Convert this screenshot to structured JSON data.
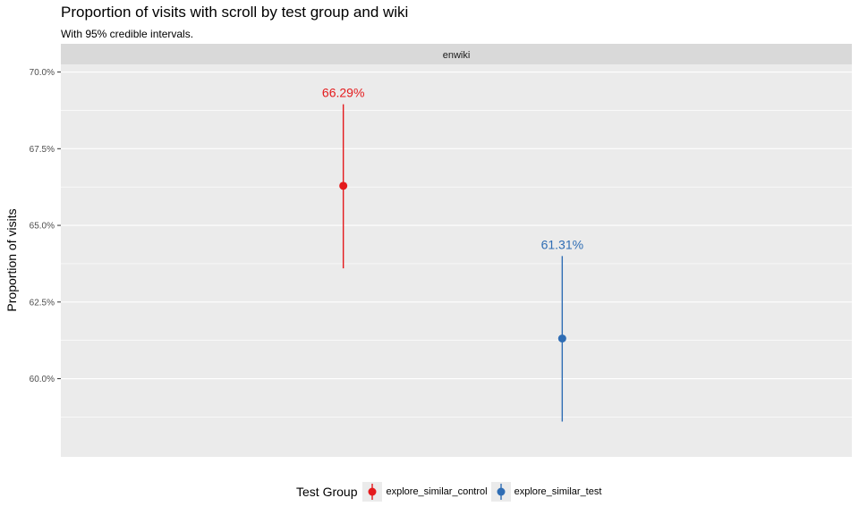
{
  "chart_data": {
    "type": "point-range",
    "title": "Proportion of visits with scroll by test group and wiki",
    "subtitle": "With 95% credible intervals.",
    "facet": "enwiki",
    "xlabel": "",
    "ylabel": "Proportion of visits",
    "ylim": [
      0.5745,
      0.7025
    ],
    "yticks": [
      0.6,
      0.625,
      0.65,
      0.675,
      0.7
    ],
    "ytick_labels": [
      "60.0%",
      "62.5%",
      "65.0%",
      "67.5%",
      "70.0%"
    ],
    "grid": true,
    "legend_position": "bottom",
    "legend_title": "Test Group",
    "categories": [
      "explore_similar_control",
      "explore_similar_test"
    ],
    "series": [
      {
        "name": "explore_similar_control",
        "estimate": 0.6629,
        "lower": 0.636,
        "upper": 0.6895,
        "label": "66.29%",
        "color": "#e41a1c"
      },
      {
        "name": "explore_similar_test",
        "estimate": 0.6131,
        "lower": 0.586,
        "upper": 0.64,
        "label": "61.31%",
        "color": "#2f6db4"
      }
    ]
  }
}
